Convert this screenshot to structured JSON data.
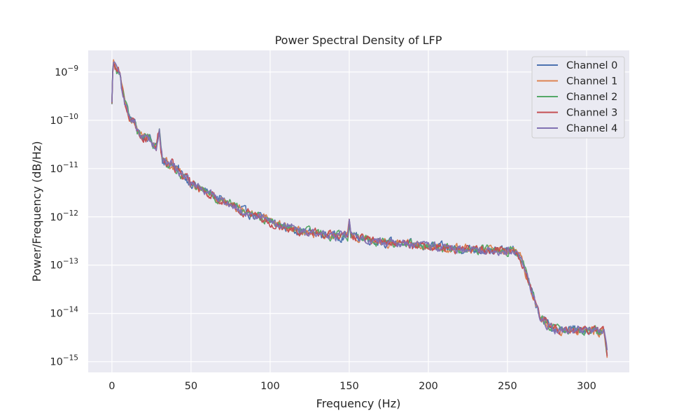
{
  "chart_data": {
    "type": "line",
    "title": "Power Spectral Density of LFP",
    "xlabel": "Frequency (Hz)",
    "ylabel": "Power/Frequency (dB/Hz)",
    "xlim": [
      -15,
      327
    ],
    "ylim": [
      6e-16,
      2.8e-09
    ],
    "yscale": "log",
    "grid": true,
    "legend_position": "top-right",
    "x_ticks": [
      0,
      50,
      100,
      150,
      200,
      250,
      300
    ],
    "y_ticks": [
      {
        "value": 1e-09,
        "base": "10",
        "exp": "−9"
      },
      {
        "value": 1e-10,
        "base": "10",
        "exp": "−10"
      },
      {
        "value": 1e-11,
        "base": "10",
        "exp": "−11"
      },
      {
        "value": 1e-12,
        "base": "10",
        "exp": "−12"
      },
      {
        "value": 1e-13,
        "base": "10",
        "exp": "−13"
      },
      {
        "value": 1e-14,
        "base": "10",
        "exp": "−14"
      },
      {
        "value": 1e-15,
        "base": "10",
        "exp": "−15"
      }
    ],
    "series": [
      {
        "name": "Channel 0",
        "color": "#4c72b0"
      },
      {
        "name": "Channel 1",
        "color": "#dd8452"
      },
      {
        "name": "Channel 2",
        "color": "#55a868"
      },
      {
        "name": "Channel 3",
        "color": "#c44e52"
      },
      {
        "name": "Channel 4",
        "color": "#8172b3"
      }
    ],
    "base_curve": {
      "x": [
        0,
        0.5,
        1,
        2,
        3,
        4,
        5,
        6,
        8,
        10,
        12,
        14,
        16,
        18,
        20,
        22,
        24,
        26,
        28,
        29,
        30,
        31,
        32,
        34,
        36,
        38,
        40,
        42,
        45,
        50,
        55,
        60,
        65,
        70,
        75,
        80,
        85,
        90,
        95,
        100,
        110,
        120,
        130,
        140,
        149,
        150,
        151,
        160,
        170,
        180,
        190,
        200,
        210,
        220,
        230,
        240,
        248,
        252,
        255,
        258,
        260,
        262,
        265,
        268,
        270,
        272,
        275,
        280,
        285,
        290,
        295,
        300,
        305,
        310,
        311,
        312,
        313
      ],
      "y": [
        2e-10,
        1e-09,
        1.5e-09,
        1.3e-09,
        1.1e-09,
        1.2e-09,
        9e-10,
        5e-10,
        2.5e-10,
        1.6e-10,
        1e-10,
        1e-10,
        6e-11,
        4.8e-11,
        4.3e-11,
        4.5e-11,
        4e-11,
        3.3e-11,
        2.8e-11,
        4.5e-11,
        6e-11,
        2.5e-11,
        1.6e-11,
        1.35e-11,
        1.2e-11,
        1.3e-11,
        1e-11,
        9.5e-12,
        7e-12,
        5e-12,
        4e-12,
        3.3e-12,
        2.6e-12,
        2.2e-12,
        1.8e-12,
        1.5e-12,
        1.2e-12,
        1.1e-12,
        9.5e-13,
        8e-13,
        6.2e-13,
        5e-13,
        4.5e-13,
        4e-13,
        4e-13,
        8e-13,
        4e-13,
        3.6e-13,
        3e-13,
        2.9e-13,
        2.6e-13,
        2.5e-13,
        2.3e-13,
        2.2e-13,
        2.1e-13,
        2.05e-13,
        2e-13,
        2e-13,
        1.9e-13,
        1.5e-13,
        1e-13,
        6e-14,
        3e-14,
        1.5e-14,
        1e-14,
        8e-15,
        6e-15,
        4.7e-15,
        4.3e-15,
        4.8e-15,
        4.5e-15,
        4.5e-15,
        4.4e-15,
        4.3e-15,
        4e-15,
        2.5e-15,
        1.4e-15
      ]
    },
    "noise_amplitude": 0.16,
    "sample_step_hz": 0.5
  }
}
